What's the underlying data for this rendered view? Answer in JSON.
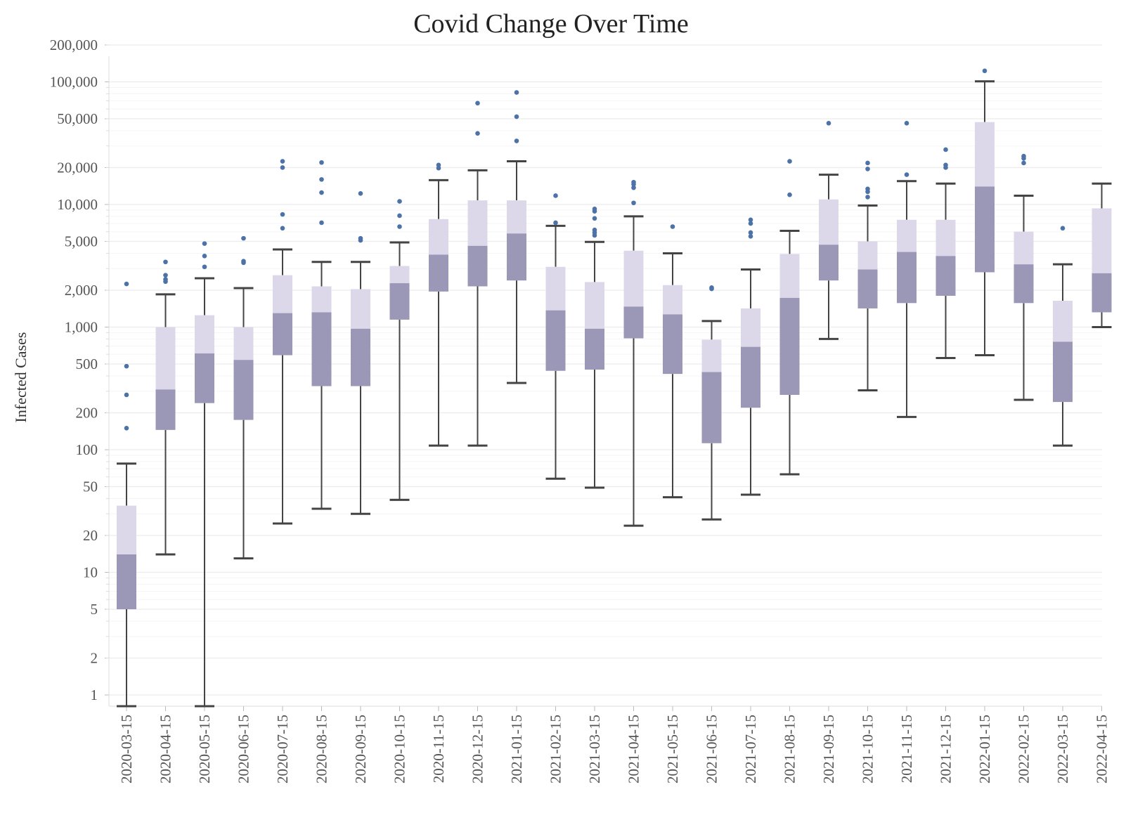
{
  "chart_data": {
    "type": "box",
    "title": "Covid Change Over Time",
    "xlabel": "",
    "ylabel": "Infected Cases",
    "yscale": "log",
    "ylim": [
      0.8,
      280000
    ],
    "y_ticks": [
      {
        "value": 1,
        "label": "1"
      },
      {
        "value": 2,
        "label": "2"
      },
      {
        "value": 5,
        "label": "5"
      },
      {
        "value": 10,
        "label": "10"
      },
      {
        "value": 20,
        "label": "20"
      },
      {
        "value": 50,
        "label": "50"
      },
      {
        "value": 100,
        "label": "100"
      },
      {
        "value": 200,
        "label": "200"
      },
      {
        "value": 500,
        "label": "500"
      },
      {
        "value": 1000,
        "label": "1,000"
      },
      {
        "value": 2000,
        "label": "2,000"
      },
      {
        "value": 5000,
        "label": "5,000"
      },
      {
        "value": 10000,
        "label": "10,000"
      },
      {
        "value": 20000,
        "label": "20,000"
      },
      {
        "value": 50000,
        "label": "50,000"
      },
      {
        "value": 100000,
        "label": "100,000"
      },
      {
        "value": 200000,
        "label": "200,000"
      }
    ],
    "grid": true,
    "colors": {
      "upper_box": "#dcd8ea",
      "lower_box": "#9b97b7",
      "outlier": "#4c72a8",
      "whisker": "#444444",
      "grid": "#ececec"
    },
    "categories": [
      "2020-03-15",
      "2020-04-15",
      "2020-05-15",
      "2020-06-15",
      "2020-07-15",
      "2020-08-15",
      "2020-09-15",
      "2020-10-15",
      "2020-11-15",
      "2020-12-15",
      "2021-01-15",
      "2021-02-15",
      "2021-03-15",
      "2021-04-15",
      "2021-05-15",
      "2021-06-15",
      "2021-07-15",
      "2021-08-15",
      "2021-09-15",
      "2021-10-15",
      "2021-11-15",
      "2021-12-15",
      "2022-01-15",
      "2022-02-15",
      "2022-03-15",
      "2022-04-15"
    ],
    "boxes": [
      {
        "min": 0.8,
        "q1": 5,
        "median": 14,
        "q3": 35,
        "max": 77,
        "outliers": [
          150,
          280,
          480,
          2250
        ]
      },
      {
        "min": 14,
        "q1": 145,
        "median": 310,
        "q3": 1000,
        "max": 1850,
        "outliers": [
          2350,
          2450,
          2650,
          3400
        ]
      },
      {
        "min": 0.8,
        "q1": 240,
        "median": 610,
        "q3": 1250,
        "max": 2500,
        "outliers": [
          3100,
          3800,
          4800
        ]
      },
      {
        "min": 13,
        "q1": 175,
        "median": 540,
        "q3": 1000,
        "max": 2080,
        "outliers": [
          3350,
          3450,
          5300
        ]
      },
      {
        "min": 25,
        "q1": 590,
        "median": 1300,
        "q3": 2650,
        "max": 4300,
        "outliers": [
          6400,
          8300,
          20000,
          22500
        ]
      },
      {
        "min": 33,
        "q1": 330,
        "median": 1320,
        "q3": 2150,
        "max": 3400,
        "outliers": [
          7100,
          12500,
          16000,
          22000
        ]
      },
      {
        "min": 30,
        "q1": 330,
        "median": 970,
        "q3": 2040,
        "max": 3400,
        "outliers": [
          5100,
          5300,
          12300
        ]
      },
      {
        "min": 39,
        "q1": 1150,
        "median": 2280,
        "q3": 3150,
        "max": 4900,
        "outliers": [
          6600,
          8100,
          10600
        ]
      },
      {
        "min": 108,
        "q1": 1950,
        "median": 3900,
        "q3": 7600,
        "max": 15800,
        "outliers": [
          19800,
          21000
        ]
      },
      {
        "min": 108,
        "q1": 2150,
        "median": 4600,
        "q3": 10800,
        "max": 19000,
        "outliers": [
          38000,
          67000
        ]
      },
      {
        "min": 350,
        "q1": 2400,
        "median": 5800,
        "q3": 10800,
        "max": 22500,
        "outliers": [
          33000,
          52000,
          82000
        ]
      },
      {
        "min": 58,
        "q1": 440,
        "median": 1370,
        "q3": 3100,
        "max": 6700,
        "outliers": [
          7100,
          11800
        ]
      },
      {
        "min": 49,
        "q1": 450,
        "median": 970,
        "q3": 2330,
        "max": 4950,
        "outliers": [
          5600,
          5900,
          6200,
          7700,
          8800,
          9200
        ]
      },
      {
        "min": 24,
        "q1": 810,
        "median": 1470,
        "q3": 4200,
        "max": 8000,
        "outliers": [
          10300,
          13700,
          14600,
          15200
        ]
      },
      {
        "min": 41,
        "q1": 415,
        "median": 1270,
        "q3": 2200,
        "max": 4000,
        "outliers": [
          6600
        ]
      },
      {
        "min": 27,
        "q1": 113,
        "median": 430,
        "q3": 790,
        "max": 1120,
        "outliers": [
          2050,
          2100
        ]
      },
      {
        "min": 43,
        "q1": 220,
        "median": 690,
        "q3": 1420,
        "max": 2950,
        "outliers": [
          5500,
          5900,
          7000,
          7500
        ]
      },
      {
        "min": 63,
        "q1": 280,
        "median": 1730,
        "q3": 3950,
        "max": 6100,
        "outliers": [
          12000,
          22500
        ]
      },
      {
        "min": 800,
        "q1": 2400,
        "median": 4700,
        "q3": 11000,
        "max": 17500,
        "outliers": [
          46000
        ]
      },
      {
        "min": 305,
        "q1": 1420,
        "median": 2950,
        "q3": 5000,
        "max": 9800,
        "outliers": [
          11500,
          12700,
          13400,
          19500,
          21800
        ]
      },
      {
        "min": 185,
        "q1": 1570,
        "median": 4100,
        "q3": 7500,
        "max": 15500,
        "outliers": [
          17500,
          46000
        ]
      },
      {
        "min": 560,
        "q1": 1800,
        "median": 3800,
        "q3": 7500,
        "max": 14800,
        "outliers": [
          20000,
          21000,
          28000
        ]
      },
      {
        "min": 590,
        "q1": 2800,
        "median": 14000,
        "q3": 47000,
        "max": 101000,
        "outliers": [
          123000
        ]
      },
      {
        "min": 255,
        "q1": 1570,
        "median": 3250,
        "q3": 6000,
        "max": 11800,
        "outliers": [
          21800,
          23800,
          24800
        ]
      },
      {
        "min": 108,
        "q1": 245,
        "median": 760,
        "q3": 1640,
        "max": 3250,
        "outliers": [
          6400
        ]
      },
      {
        "min": 1000,
        "q1": 1320,
        "median": 2750,
        "q3": 9300,
        "max": 14800,
        "outliers": []
      }
    ]
  }
}
